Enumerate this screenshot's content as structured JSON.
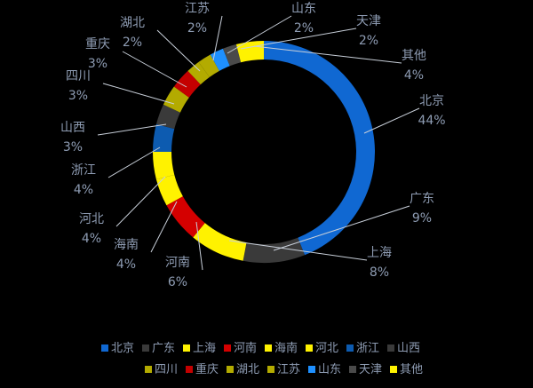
{
  "chart_data": {
    "type": "pie",
    "donut": true,
    "title": "",
    "legend_position": "bottom",
    "slices": [
      {
        "label": "北京",
        "value": 44,
        "pct_label": "44%",
        "color": "#1068d2"
      },
      {
        "label": "广东",
        "value": 9,
        "pct_label": "9%",
        "color": "#3a3a3a"
      },
      {
        "label": "上海",
        "value": 8,
        "pct_label": "8%",
        "color": "#fff200"
      },
      {
        "label": "河南",
        "value": 6,
        "pct_label": "6%",
        "color": "#d40000"
      },
      {
        "label": "海南",
        "value": 4,
        "pct_label": "4%",
        "color": "#fff200"
      },
      {
        "label": "河北",
        "value": 4,
        "pct_label": "4%",
        "color": "#fff200"
      },
      {
        "label": "浙江",
        "value": 4,
        "pct_label": "4%",
        "color": "#0d5bb0"
      },
      {
        "label": "山西",
        "value": 3,
        "pct_label": "3%",
        "color": "#3a3a3a"
      },
      {
        "label": "四川",
        "value": 3,
        "pct_label": "3%",
        "color": "#b3ab00"
      },
      {
        "label": "重庆",
        "value": 3,
        "pct_label": "3%",
        "color": "#c40000"
      },
      {
        "label": "湖北",
        "value": 2,
        "pct_label": "2%",
        "color": "#b3ab00"
      },
      {
        "label": "江苏",
        "value": 2,
        "pct_label": "2%",
        "color": "#b3ab00"
      },
      {
        "label": "山东",
        "value": 2,
        "pct_label": "2%",
        "color": "#1e90ff"
      },
      {
        "label": "天津",
        "value": 2,
        "pct_label": "2%",
        "color": "#4a4a4a"
      },
      {
        "label": "其他",
        "value": 4,
        "pct_label": "4%",
        "color": "#fff200"
      }
    ],
    "colors": {
      "background": "#000000",
      "label_text": "#8e9cb3",
      "leader_line": "#c8cfd9"
    }
  }
}
